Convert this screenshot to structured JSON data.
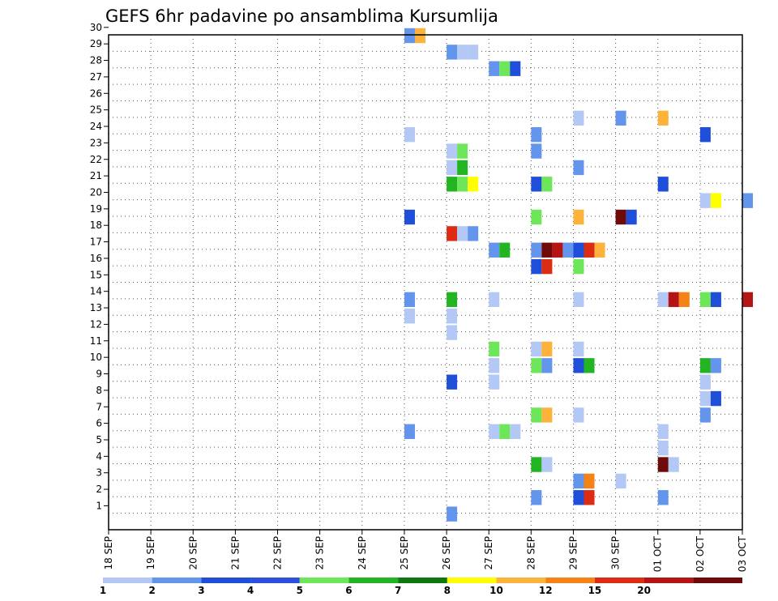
{
  "chart_data": {
    "type": "heatmap",
    "title": "GEFS 6hr padavine po ansamblima Kursumlija",
    "xlabel": "",
    "ylabel": "",
    "x_ticks": [
      "18 SEP",
      "19 SEP",
      "20 SEP",
      "21 SEP",
      "22 SEP",
      "23 SEP",
      "24 SEP",
      "25 SEP",
      "26 SEP",
      "27 SEP",
      "28 SEP",
      "29 SEP",
      "30 SEP",
      "01 OCT",
      "02 OCT",
      "03 OCT"
    ],
    "y_ticks": [
      1,
      2,
      3,
      4,
      5,
      6,
      7,
      8,
      9,
      10,
      11,
      12,
      13,
      14,
      15,
      16,
      17,
      18,
      19,
      20,
      21,
      22,
      23,
      24,
      25,
      26,
      27,
      28,
      29,
      30
    ],
    "ylim": [
      0,
      30
    ],
    "grid": true,
    "legend": {
      "placement": "bottom",
      "levels": [
        "1",
        "2",
        "3",
        "4",
        "5",
        "6",
        "7",
        "8",
        "10",
        "12",
        "15",
        "20"
      ],
      "colors": [
        "#b3c8f5",
        "#6495ed",
        "#1f4fd8",
        "#2d4fdc",
        "#6ee65a",
        "#22b422",
        "#0d780d",
        "#ffff00",
        "#fdb23c",
        "#f58214",
        "#dc2d14",
        "#b41414",
        "#6e0a0a"
      ]
    },
    "cells": [
      {
        "date": "25 SEP",
        "member": 30,
        "bin": 1
      },
      {
        "date": "25 SEP",
        "member": 30,
        "bin": 8
      },
      {
        "date": "26 SEP",
        "member": 29,
        "bin": 1
      },
      {
        "date": "26 SEP",
        "member": 29,
        "bin": 0
      },
      {
        "date": "26 SEP",
        "member": 29,
        "bin": 0
      },
      {
        "date": "27 SEP",
        "member": 28,
        "bin": 1
      },
      {
        "date": "27 SEP",
        "member": 28,
        "bin": 4
      },
      {
        "date": "27 SEP",
        "member": 28,
        "bin": 2
      },
      {
        "date": "29 SEP",
        "member": 25,
        "bin": 0
      },
      {
        "date": "30 SEP",
        "member": 25,
        "bin": 1
      },
      {
        "date": "01 OCT",
        "member": 25,
        "bin": 8
      },
      {
        "date": "25 SEP",
        "member": 24,
        "bin": 0
      },
      {
        "date": "28 SEP",
        "member": 24,
        "bin": 1
      },
      {
        "date": "02 OCT",
        "member": 24,
        "bin": 2
      },
      {
        "date": "26 SEP",
        "member": 23,
        "bin": 0
      },
      {
        "date": "26 SEP",
        "member": 23,
        "bin": 4
      },
      {
        "date": "28 SEP",
        "member": 23,
        "bin": 1
      },
      {
        "date": "26 SEP",
        "member": 22,
        "bin": 0
      },
      {
        "date": "26 SEP",
        "member": 22,
        "bin": 5
      },
      {
        "date": "29 SEP",
        "member": 22,
        "bin": 1
      },
      {
        "date": "26 SEP",
        "member": 21,
        "bin": 5
      },
      {
        "date": "26 SEP",
        "member": 21,
        "bin": 4
      },
      {
        "date": "26 SEP",
        "member": 21,
        "bin": 7
      },
      {
        "date": "28 SEP",
        "member": 21,
        "bin": 2
      },
      {
        "date": "28 SEP",
        "member": 21,
        "bin": 4
      },
      {
        "date": "01 OCT",
        "member": 21,
        "bin": 2
      },
      {
        "date": "02 OCT",
        "member": 20,
        "bin": 0
      },
      {
        "date": "02 OCT",
        "member": 20,
        "bin": 7
      },
      {
        "date": "03 OCT",
        "member": 20,
        "bin": 1
      },
      {
        "date": "25 SEP",
        "member": 19,
        "bin": 2
      },
      {
        "date": "28 SEP",
        "member": 19,
        "bin": 4
      },
      {
        "date": "29 SEP",
        "member": 19,
        "bin": 8
      },
      {
        "date": "30 SEP",
        "member": 19,
        "bin": 12
      },
      {
        "date": "30 SEP",
        "member": 19,
        "bin": 2
      },
      {
        "date": "26 SEP",
        "member": 18,
        "bin": 10
      },
      {
        "date": "26 SEP",
        "member": 18,
        "bin": 0
      },
      {
        "date": "26 SEP",
        "member": 18,
        "bin": 1
      },
      {
        "date": "27 SEP",
        "member": 17,
        "bin": 1
      },
      {
        "date": "27 SEP",
        "member": 17,
        "bin": 5
      },
      {
        "date": "28 SEP",
        "member": 17,
        "bin": 1
      },
      {
        "date": "28 SEP",
        "member": 17,
        "bin": 12
      },
      {
        "date": "28 SEP",
        "member": 17,
        "bin": 11
      },
      {
        "date": "28 SEP",
        "member": 17,
        "bin": 1
      },
      {
        "date": "29 SEP",
        "member": 17,
        "bin": 2
      },
      {
        "date": "29 SEP",
        "member": 17,
        "bin": 10
      },
      {
        "date": "29 SEP",
        "member": 17,
        "bin": 8
      },
      {
        "date": "28 SEP",
        "member": 16,
        "bin": 2
      },
      {
        "date": "28 SEP",
        "member": 16,
        "bin": 10
      },
      {
        "date": "29 SEP",
        "member": 16,
        "bin": 4
      },
      {
        "date": "25 SEP",
        "member": 14,
        "bin": 1
      },
      {
        "date": "26 SEP",
        "member": 14,
        "bin": 5
      },
      {
        "date": "27 SEP",
        "member": 14,
        "bin": 0
      },
      {
        "date": "29 SEP",
        "member": 14,
        "bin": 0
      },
      {
        "date": "01 OCT",
        "member": 14,
        "bin": 0
      },
      {
        "date": "01 OCT",
        "member": 14,
        "bin": 11
      },
      {
        "date": "01 OCT",
        "member": 14,
        "bin": 9
      },
      {
        "date": "02 OCT",
        "member": 14,
        "bin": 4
      },
      {
        "date": "02 OCT",
        "member": 14,
        "bin": 2
      },
      {
        "date": "03 OCT",
        "member": 14,
        "bin": 11
      },
      {
        "date": "25 SEP",
        "member": 13,
        "bin": 0
      },
      {
        "date": "26 SEP",
        "member": 13,
        "bin": 0
      },
      {
        "date": "26 SEP",
        "member": 12,
        "bin": 0
      },
      {
        "date": "27 SEP",
        "member": 11,
        "bin": 4
      },
      {
        "date": "28 SEP",
        "member": 11,
        "bin": 0
      },
      {
        "date": "28 SEP",
        "member": 11,
        "bin": 8
      },
      {
        "date": "29 SEP",
        "member": 11,
        "bin": 0
      },
      {
        "date": "27 SEP",
        "member": 10,
        "bin": 0
      },
      {
        "date": "28 SEP",
        "member": 10,
        "bin": 4
      },
      {
        "date": "28 SEP",
        "member": 10,
        "bin": 1
      },
      {
        "date": "29 SEP",
        "member": 10,
        "bin": 2
      },
      {
        "date": "29 SEP",
        "member": 10,
        "bin": 5
      },
      {
        "date": "02 OCT",
        "member": 10,
        "bin": 5
      },
      {
        "date": "02 OCT",
        "member": 10,
        "bin": 1
      },
      {
        "date": "26 SEP",
        "member": 9,
        "bin": 2
      },
      {
        "date": "27 SEP",
        "member": 9,
        "bin": 0
      },
      {
        "date": "02 OCT",
        "member": 9,
        "bin": 0
      },
      {
        "date": "02 OCT",
        "member": 8,
        "bin": 0
      },
      {
        "date": "02 OCT",
        "member": 8,
        "bin": 2
      },
      {
        "date": "28 SEP",
        "member": 7,
        "bin": 4
      },
      {
        "date": "28 SEP",
        "member": 7,
        "bin": 8
      },
      {
        "date": "29 SEP",
        "member": 7,
        "bin": 0
      },
      {
        "date": "02 OCT",
        "member": 7,
        "bin": 1
      },
      {
        "date": "25 SEP",
        "member": 6,
        "bin": 1
      },
      {
        "date": "27 SEP",
        "member": 6,
        "bin": 0
      },
      {
        "date": "27 SEP",
        "member": 6,
        "bin": 4
      },
      {
        "date": "27 SEP",
        "member": 6,
        "bin": 0
      },
      {
        "date": "01 OCT",
        "member": 6,
        "bin": 0
      },
      {
        "date": "01 OCT",
        "member": 5,
        "bin": 0
      },
      {
        "date": "28 SEP",
        "member": 4,
        "bin": 5
      },
      {
        "date": "28 SEP",
        "member": 4,
        "bin": 0
      },
      {
        "date": "01 OCT",
        "member": 4,
        "bin": 12
      },
      {
        "date": "01 OCT",
        "member": 4,
        "bin": 0
      },
      {
        "date": "29 SEP",
        "member": 3,
        "bin": 1
      },
      {
        "date": "29 SEP",
        "member": 3,
        "bin": 9
      },
      {
        "date": "30 SEP",
        "member": 3,
        "bin": 0
      },
      {
        "date": "28 SEP",
        "member": 2,
        "bin": 1
      },
      {
        "date": "29 SEP",
        "member": 2,
        "bin": 2
      },
      {
        "date": "29 SEP",
        "member": 2,
        "bin": 10
      },
      {
        "date": "01 OCT",
        "member": 2,
        "bin": 1
      },
      {
        "date": "26 SEP",
        "member": 1,
        "bin": 1
      }
    ]
  }
}
